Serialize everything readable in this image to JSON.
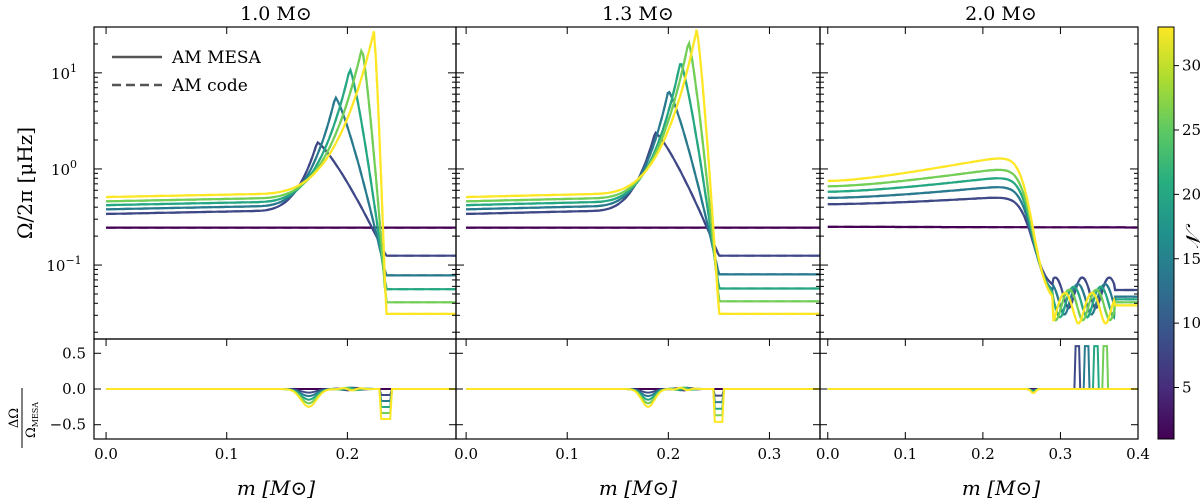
{
  "chart_data": {
    "type": "line",
    "panels": [
      {
        "title": "1.0 M⊙",
        "xlim": [
          -0.01,
          0.29
        ],
        "xticks": [
          0.0,
          0.1,
          0.2
        ],
        "xtick_labels": [
          "0.0",
          "0.1",
          "0.2"
        ],
        "transition": 0.232,
        "spike_pos": 0.232,
        "spike_depth": -0.42,
        "dip_center": 0.168,
        "curves": [
          {
            "N": 1,
            "base": 0.245,
            "peak": null,
            "peak_x": null,
            "after": 0.245
          },
          {
            "N": 8,
            "base": 0.34,
            "peak": 1.9,
            "peak_x": 0.175,
            "after": 0.125
          },
          {
            "N": 14,
            "base": 0.38,
            "peak": 5.6,
            "peak_x": 0.19,
            "after": 0.078
          },
          {
            "N": 20,
            "base": 0.42,
            "peak": 11.0,
            "peak_x": 0.202,
            "after": 0.056
          },
          {
            "N": 26,
            "base": 0.46,
            "peak": 18.0,
            "peak_x": 0.212,
            "after": 0.041
          },
          {
            "N": 33,
            "base": 0.51,
            "peak": 27.0,
            "peak_x": 0.222,
            "after": 0.031
          }
        ]
      },
      {
        "title": "1.3 M⊙",
        "xlim": [
          -0.01,
          0.35
        ],
        "xticks": [
          0.0,
          0.1,
          0.2,
          0.3
        ],
        "xtick_labels": [
          "0.0",
          "0.1",
          "0.2",
          "0.3"
        ],
        "transition": 0.25,
        "spike_pos": 0.25,
        "spike_depth": -0.46,
        "dip_center": 0.18,
        "curves": [
          {
            "N": 1,
            "base": 0.245,
            "peak": null,
            "peak_x": null,
            "after": 0.245
          },
          {
            "N": 8,
            "base": 0.34,
            "peak": 2.4,
            "peak_x": 0.187,
            "after": 0.125
          },
          {
            "N": 14,
            "base": 0.38,
            "peak": 6.5,
            "peak_x": 0.2,
            "after": 0.08
          },
          {
            "N": 20,
            "base": 0.42,
            "peak": 13.0,
            "peak_x": 0.212,
            "after": 0.057
          },
          {
            "N": 26,
            "base": 0.46,
            "peak": 21.0,
            "peak_x": 0.22,
            "after": 0.042
          },
          {
            "N": 33,
            "base": 0.51,
            "peak": 28.0,
            "peak_x": 0.228,
            "after": 0.031
          }
        ]
      },
      {
        "title": "2.0 M⊙",
        "xlim": [
          -0.01,
          0.4
        ],
        "xticks": [
          0.0,
          0.1,
          0.2,
          0.3,
          0.4
        ],
        "xtick_labels": [
          "0.0",
          "0.1",
          "0.2",
          "0.3",
          "0.4"
        ],
        "transition": 0.265,
        "spike_pos": 0.265,
        "spike_depth": -0.1,
        "dip_center": null,
        "curves": [
          {
            "N": 1,
            "base": 0.25,
            "hump": 0.25,
            "after": 0.24
          },
          {
            "N": 8,
            "base": 0.43,
            "hump": 0.52,
            "after": 0.055
          },
          {
            "N": 14,
            "base": 0.5,
            "hump": 0.68,
            "after": 0.047
          },
          {
            "N": 20,
            "base": 0.58,
            "hump": 0.85,
            "after": 0.044
          },
          {
            "N": 26,
            "base": 0.66,
            "hump": 1.05,
            "after": 0.041
          },
          {
            "N": 33,
            "base": 0.75,
            "hump": 1.4,
            "after": 0.038
          }
        ]
      }
    ],
    "top_ylim": [
      0.017,
      30
    ],
    "top_yticks": [
      0.1,
      1,
      10
    ],
    "top_ytick_labels": [
      "10",
      "10",
      "10"
    ],
    "top_ytick_exponents": [
      "−1",
      "0",
      "1"
    ],
    "top_ylabel": "Ω/2π [μHz]",
    "bottom_ylim": [
      -0.7,
      0.7
    ],
    "bottom_yticks": [
      0.5,
      0.0,
      -0.5
    ],
    "bottom_ytick_labels": [
      "0.5",
      "0.0",
      "−0.5"
    ],
    "bottom_ylabel_num": "ΔΩ",
    "bottom_ylabel_den": "Ω",
    "bottom_ylabel_den_sub": "MESA",
    "xlabel": "m [M⊙]",
    "legend": {
      "solid": "AM MESA",
      "dashed": "AM code",
      "placement": "top-left"
    },
    "colorbar": {
      "label": "𝒩",
      "range": [
        1,
        33
      ],
      "ticks": [
        5,
        10,
        15,
        20,
        25,
        30
      ],
      "tick_labels": [
        "5",
        "10",
        "15",
        "20",
        "25",
        "30"
      ],
      "colormap": "viridis"
    }
  }
}
